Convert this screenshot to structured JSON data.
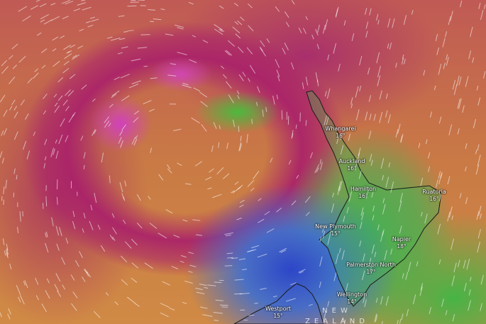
{
  "map": {
    "layer": "temperature",
    "country_label": [
      "NEW",
      "ZEALAND"
    ],
    "cities": [
      {
        "name": "Whangarei",
        "temp": "16°"
      },
      {
        "name": "Auckland",
        "temp": "16°"
      },
      {
        "name": "Hamilton",
        "temp": "16°"
      },
      {
        "name": "Ruatoria",
        "temp": "16°"
      },
      {
        "name": "New Plymouth",
        "temp": "15°"
      },
      {
        "name": "Napier",
        "temp": "18°"
      },
      {
        "name": "Palmerston North",
        "temp": "17°"
      },
      {
        "name": "Wellington",
        "temp": "14°"
      },
      {
        "name": "Westport",
        "temp": "15°"
      }
    ],
    "colors": {
      "hot": "#a8226e",
      "warm": "#cc7a3c",
      "mild": "#4cb04a",
      "cool": "#3a5fd0"
    }
  }
}
